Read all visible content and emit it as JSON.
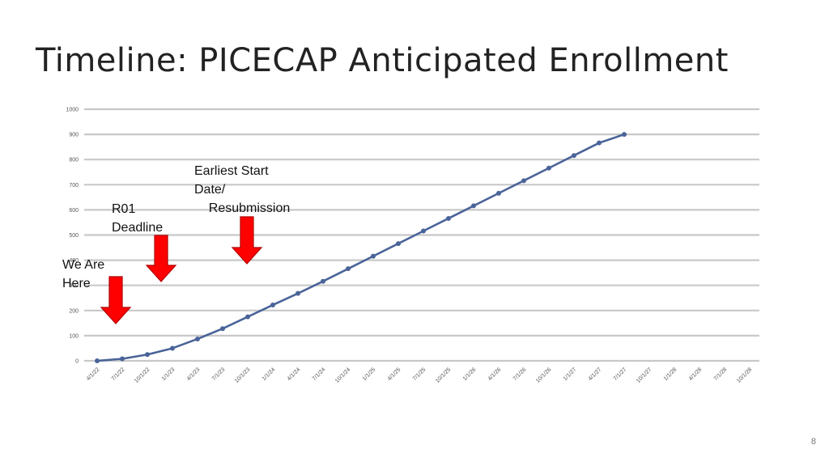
{
  "slide": {
    "title": "Timeline: PICECAP Anticipated Enrollment",
    "page_number": "8"
  },
  "annotations": [
    {
      "id": "we-are-here",
      "label": "We Are\nHere",
      "points_to": "4/1/22"
    },
    {
      "id": "r01-deadline",
      "label": "R01\nDeadline",
      "points_to": "10/1/22"
    },
    {
      "id": "earliest-start",
      "label": "Earliest Start\nDate/\n    Resubmission",
      "points_to": "10/1/23"
    }
  ],
  "colors": {
    "series": "#4a6499",
    "gridline": "#c8c8c8",
    "arrow_fill": "#ff0000",
    "arrow_stroke": "#b00000"
  },
  "chart_data": {
    "type": "line",
    "title": "",
    "xlabel": "",
    "ylabel": "",
    "ylim": [
      0,
      1000
    ],
    "yticks": [
      0,
      100,
      200,
      300,
      400,
      500,
      600,
      700,
      800,
      900,
      1000
    ],
    "grid": true,
    "legend": "none",
    "categories": [
      "4/1/22",
      "7/1/22",
      "10/1/22",
      "1/1/23",
      "4/1/23",
      "7/1/23",
      "10/1/23",
      "1/1/24",
      "4/1/24",
      "7/1/24",
      "10/1/24",
      "1/1/25",
      "4/1/25",
      "7/1/25",
      "10/1/25",
      "1/1/26",
      "4/1/26",
      "7/1/26",
      "10/1/26",
      "1/1/27",
      "4/1/27",
      "7/1/27",
      "10/1/27",
      "1/1/28",
      "4/1/28",
      "7/1/28",
      "10/1/28"
    ],
    "series": [
      {
        "values": [
          0,
          8,
          25,
          50,
          87,
          128,
          175,
          222,
          268,
          316,
          366,
          416,
          466,
          516,
          566,
          616,
          666,
          716,
          766,
          816,
          866,
          900,
          null,
          null,
          null,
          null,
          null
        ]
      }
    ]
  }
}
